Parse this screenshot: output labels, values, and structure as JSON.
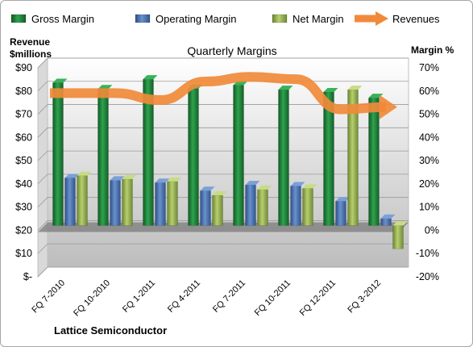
{
  "chart_data": {
    "type": "bar",
    "title": "Quarterly Margins",
    "company": "Lattice Semiconductor",
    "left_axis_label": [
      "Revenue",
      "$millions"
    ],
    "right_axis_label": "Margin %",
    "left_ticks": [
      "$-",
      "$10",
      "$20",
      "$30",
      "$40",
      "$50",
      "$60",
      "$70",
      "$80",
      "$90"
    ],
    "right_ticks": [
      "-20%",
      "-10%",
      "0%",
      "10%",
      "20%",
      "30%",
      "40%",
      "50%",
      "60%",
      "70%"
    ],
    "left_ylim": [
      0,
      90
    ],
    "right_ylim": [
      -20,
      70
    ],
    "categories": [
      "FQ 7-2010",
      "FQ 10-2010",
      "FQ 1-2011",
      "FQ 4-2011",
      "FQ 7-2011",
      "FQ 10-2011",
      "FQ 12-2011",
      "FQ 3-2012"
    ],
    "series": [
      {
        "name": "Gross Margin",
        "axis": "right",
        "values": [
          61.5,
          58.8,
          63,
          59,
          60.5,
          58.5,
          57.5,
          55
        ]
      },
      {
        "name": "Operating Margin",
        "axis": "right",
        "values": [
          20.5,
          19.5,
          18.5,
          15,
          17.5,
          17,
          10.5,
          3
        ]
      },
      {
        "name": "Net Margin",
        "axis": "right",
        "values": [
          21.5,
          20,
          19,
          13,
          15.5,
          16,
          58.5,
          -10
        ]
      },
      {
        "name": "Revenues",
        "axis": "left",
        "type": "line",
        "values": [
          77,
          77,
          74,
          82,
          84,
          83,
          70,
          71
        ]
      }
    ],
    "colors": {
      "gross": "#1f8a3c",
      "operating": "#4a74b5",
      "net": "#98b44d",
      "revenue": "#f08a3a",
      "plot_bg_top": "#ffffff",
      "plot_bg_bottom": "#bfbfbf",
      "floor": "#8c8c8c"
    },
    "legend_position": "top"
  }
}
